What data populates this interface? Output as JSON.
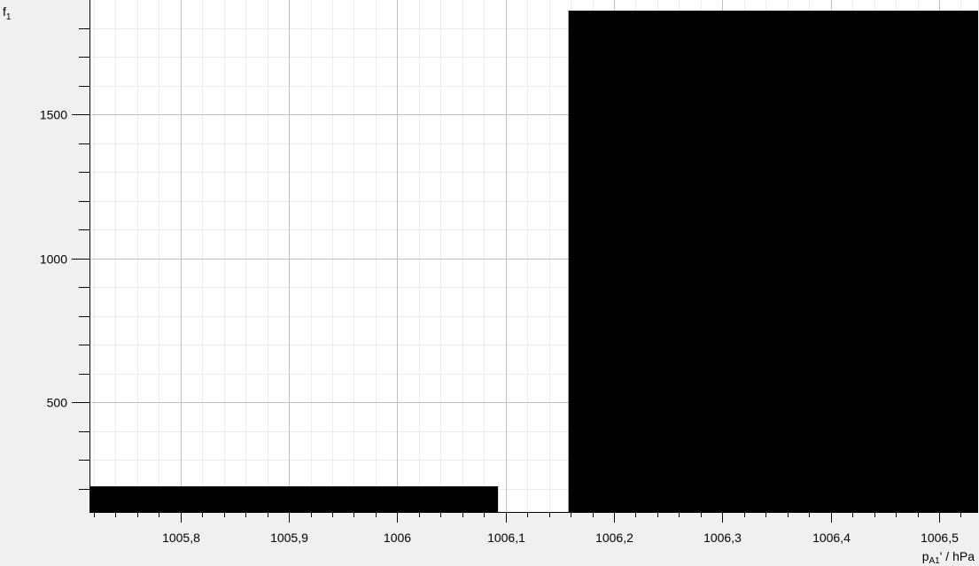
{
  "chart_data": {
    "type": "bar",
    "title": "",
    "ylabel": {
      "base": "f",
      "sub": "1"
    },
    "xlabel": {
      "base": "p",
      "sub": "A1",
      "suffix": "' / hPa"
    },
    "xlim": [
      1005.716,
      1006.536
    ],
    "ylim": [
      119,
      1897
    ],
    "x_ticks": [
      1005.8,
      1005.9,
      1006.0,
      1006.1,
      1006.2,
      1006.3,
      1006.4,
      1006.5
    ],
    "x_tick_labels": [
      "1005,8",
      "1005,9",
      "1006",
      "1006,1",
      "1006,2",
      "1006,3",
      "1006,4",
      "1006,5"
    ],
    "y_ticks": [
      500,
      1000,
      1500
    ],
    "y_tick_labels": [
      "500",
      "1000",
      "1500"
    ],
    "grid": true,
    "legend": "none",
    "bar_color": "#000000",
    "bars": [
      {
        "x0": 1005.716,
        "x1": 1006.093,
        "value": 208
      },
      {
        "x0": 1006.093,
        "x1": 1006.158,
        "value": 119
      },
      {
        "x0": 1006.158,
        "x1": 1006.536,
        "value": 1860
      }
    ]
  }
}
